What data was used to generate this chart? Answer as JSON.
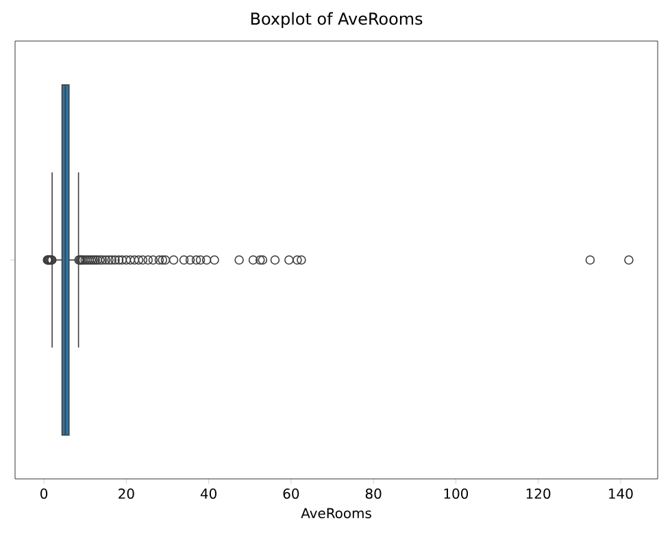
{
  "chart_data": {
    "type": "box",
    "title": "Boxplot of AveRooms",
    "xlabel": "AveRooms",
    "orientation": "horizontal",
    "categories": [
      null
    ],
    "color": "#3274a1",
    "boxes": [
      {
        "low": 2.0,
        "q1": 4.4,
        "median": 5.2,
        "q3": 6.1,
        "high": 8.4,
        "outliers": [
          0.85,
          1.0,
          1.13,
          1.3,
          1.55,
          1.78,
          1.95,
          8.5,
          8.8,
          9.1,
          9.5,
          10,
          10.5,
          11,
          11.5,
          12,
          12.5,
          13,
          13.6,
          14.2,
          15,
          15.8,
          16.5,
          17.3,
          18.2,
          19,
          20,
          21,
          22,
          23,
          24,
          25.3,
          26.5,
          28,
          28.8,
          29.5,
          31.5,
          34,
          35.5,
          37,
          38,
          39.5,
          41.4,
          47.4,
          50.8,
          52.5,
          53.1,
          56.1,
          59.5,
          61.5,
          62.5,
          132.6,
          142
        ]
      }
    ],
    "xlim": [
      -7,
      149
    ],
    "xticks": [
      0,
      20,
      40,
      60,
      80,
      100,
      120,
      140
    ],
    "grid": false
  }
}
